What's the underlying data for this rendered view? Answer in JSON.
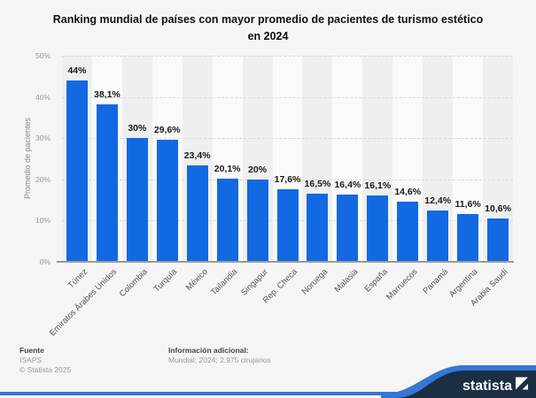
{
  "title": {
    "line1": "Ranking mundial de países con mayor promedio de pacientes de turismo estético",
    "line2": "en 2024"
  },
  "chart_data": {
    "type": "bar",
    "categories": [
      "Túnez",
      "Emiratos Árabes Unidos",
      "Colombia",
      "Turquía",
      "México",
      "Tailandia",
      "Singapur",
      "Rep. Checa",
      "Noruega",
      "Malasia",
      "España",
      "Marruecos",
      "Panamá",
      "Argentina",
      "Arabia Saudí"
    ],
    "values": [
      44,
      38.1,
      30,
      29.6,
      23.4,
      20.1,
      20,
      17.6,
      16.5,
      16.4,
      16.1,
      14.6,
      12.4,
      11.6,
      10.6
    ],
    "value_labels": [
      "44%",
      "38,1%",
      "30%",
      "29,6%",
      "23,4%",
      "20,1%",
      "20%",
      "17,6%",
      "16,5%",
      "16,4%",
      "16,1%",
      "14,6%",
      "12,4%",
      "11,6%",
      "10,6%"
    ],
    "title": "Ranking mundial de países con mayor promedio de pacientes de turismo estético en 2024",
    "xlabel": "",
    "ylabel": "Promedio de pacientes",
    "ylim": [
      0,
      50
    ],
    "ytick_labels": [
      "0%",
      "10%",
      "20%",
      "30%",
      "40%",
      "50%"
    ],
    "grid": "horizontal-dashed",
    "legend": "none",
    "bar_color": "#1269e2"
  },
  "footer": {
    "source_label": "Fuente",
    "source": "ISAPS",
    "copyright": "© Statista 2025",
    "info_label": "Información adicional:",
    "info": "Mundial; 2024; 2.975 cirujanos"
  },
  "brand": {
    "logo_text": "statista",
    "accent_blue": "#3577d6",
    "navy": "#1b2e44"
  }
}
